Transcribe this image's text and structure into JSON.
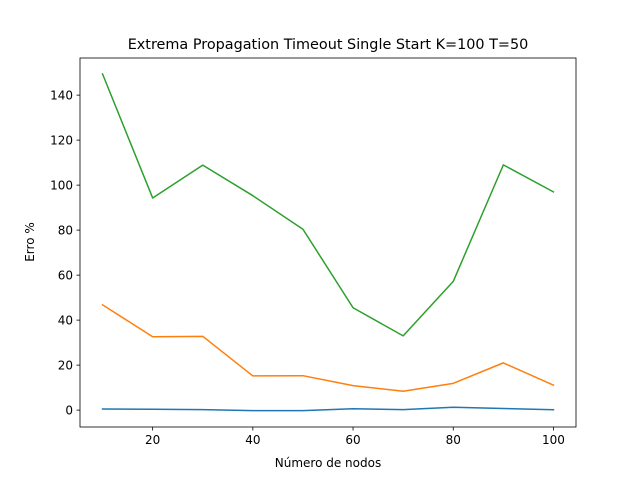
{
  "chart_data": {
    "type": "line",
    "title": "Extrema Propagation Timeout Single Start K=100 T=50",
    "xlabel": "Número de nodos",
    "ylabel": "Erro %",
    "x": [
      10,
      20,
      30,
      40,
      50,
      60,
      70,
      80,
      90,
      100
    ],
    "xlim": [
      5.5,
      104.5
    ],
    "ylim": [
      -7.5,
      156.5
    ],
    "xticks": [
      "20",
      "40",
      "60",
      "80",
      "100"
    ],
    "xtick_values": [
      20,
      40,
      60,
      80,
      100
    ],
    "yticks": [
      "0",
      "20",
      "40",
      "60",
      "80",
      "100",
      "120",
      "140"
    ],
    "ytick_values": [
      0,
      20,
      40,
      60,
      80,
      100,
      120,
      140
    ],
    "grid": false,
    "legend": "none",
    "series": [
      {
        "color": "#1f77b4",
        "values": [
          0.5,
          0.4,
          0.2,
          -0.2,
          -0.2,
          0.6,
          0.2,
          1.3,
          0.7,
          0.2
        ]
      },
      {
        "color": "#ff7f0e",
        "values": [
          46.8,
          32.6,
          32.8,
          15.2,
          15.3,
          10.9,
          8.4,
          11.9,
          21.0,
          11.1
        ]
      },
      {
        "color": "#2ca02c",
        "values": [
          149.4,
          94.3,
          108.9,
          95.3,
          80.4,
          45.5,
          33.0,
          57.2,
          109.0,
          97.0
        ]
      }
    ]
  }
}
